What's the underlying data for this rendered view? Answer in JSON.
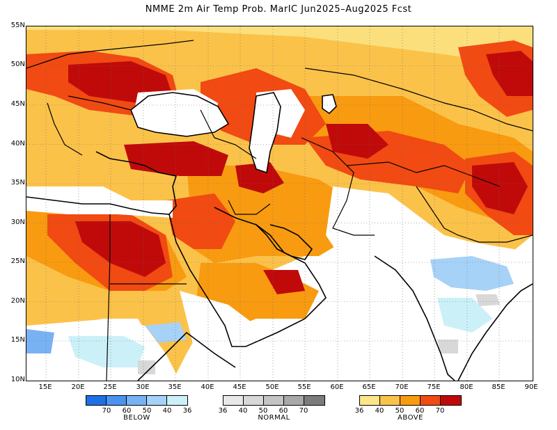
{
  "title": "NMME 2m Air Temp Prob. MarIC  Jun2025–Aug2025 Fcst",
  "lat_labels": [
    "55N",
    "50N",
    "45N",
    "40N",
    "35N",
    "30N",
    "25N",
    "20N",
    "15N",
    "10N"
  ],
  "lon_labels": [
    "15E",
    "20E",
    "25E",
    "30E",
    "35E",
    "40E",
    "45E",
    "50E",
    "55E",
    "60E",
    "65E",
    "70E",
    "75E",
    "80E",
    "85E",
    "90E"
  ],
  "legend": {
    "below": {
      "name": "BELOW",
      "ticks": [
        "70",
        "60",
        "50",
        "40",
        "36"
      ],
      "colors": [
        "#1f6fe6",
        "#4a93ee",
        "#78b2f3",
        "#a6d2f8",
        "#ccf0f8"
      ]
    },
    "normal": {
      "name": "NORMAL",
      "ticks": [
        "36",
        "40",
        "50",
        "60",
        "70"
      ],
      "colors": [
        "#e8e8e8",
        "#d8d8d8",
        "#c4c4c4",
        "#a8a8a8",
        "#7c7c7c"
      ]
    },
    "above": {
      "name": "ABOVE",
      "ticks": [
        "36",
        "40",
        "50",
        "60",
        "70"
      ],
      "colors": [
        "#fde68a",
        "#fbc24a",
        "#f89b10",
        "#f14a12",
        "#c00a0a"
      ]
    }
  },
  "colors": {
    "background": "#ffffff",
    "land_border": "#000000"
  }
}
